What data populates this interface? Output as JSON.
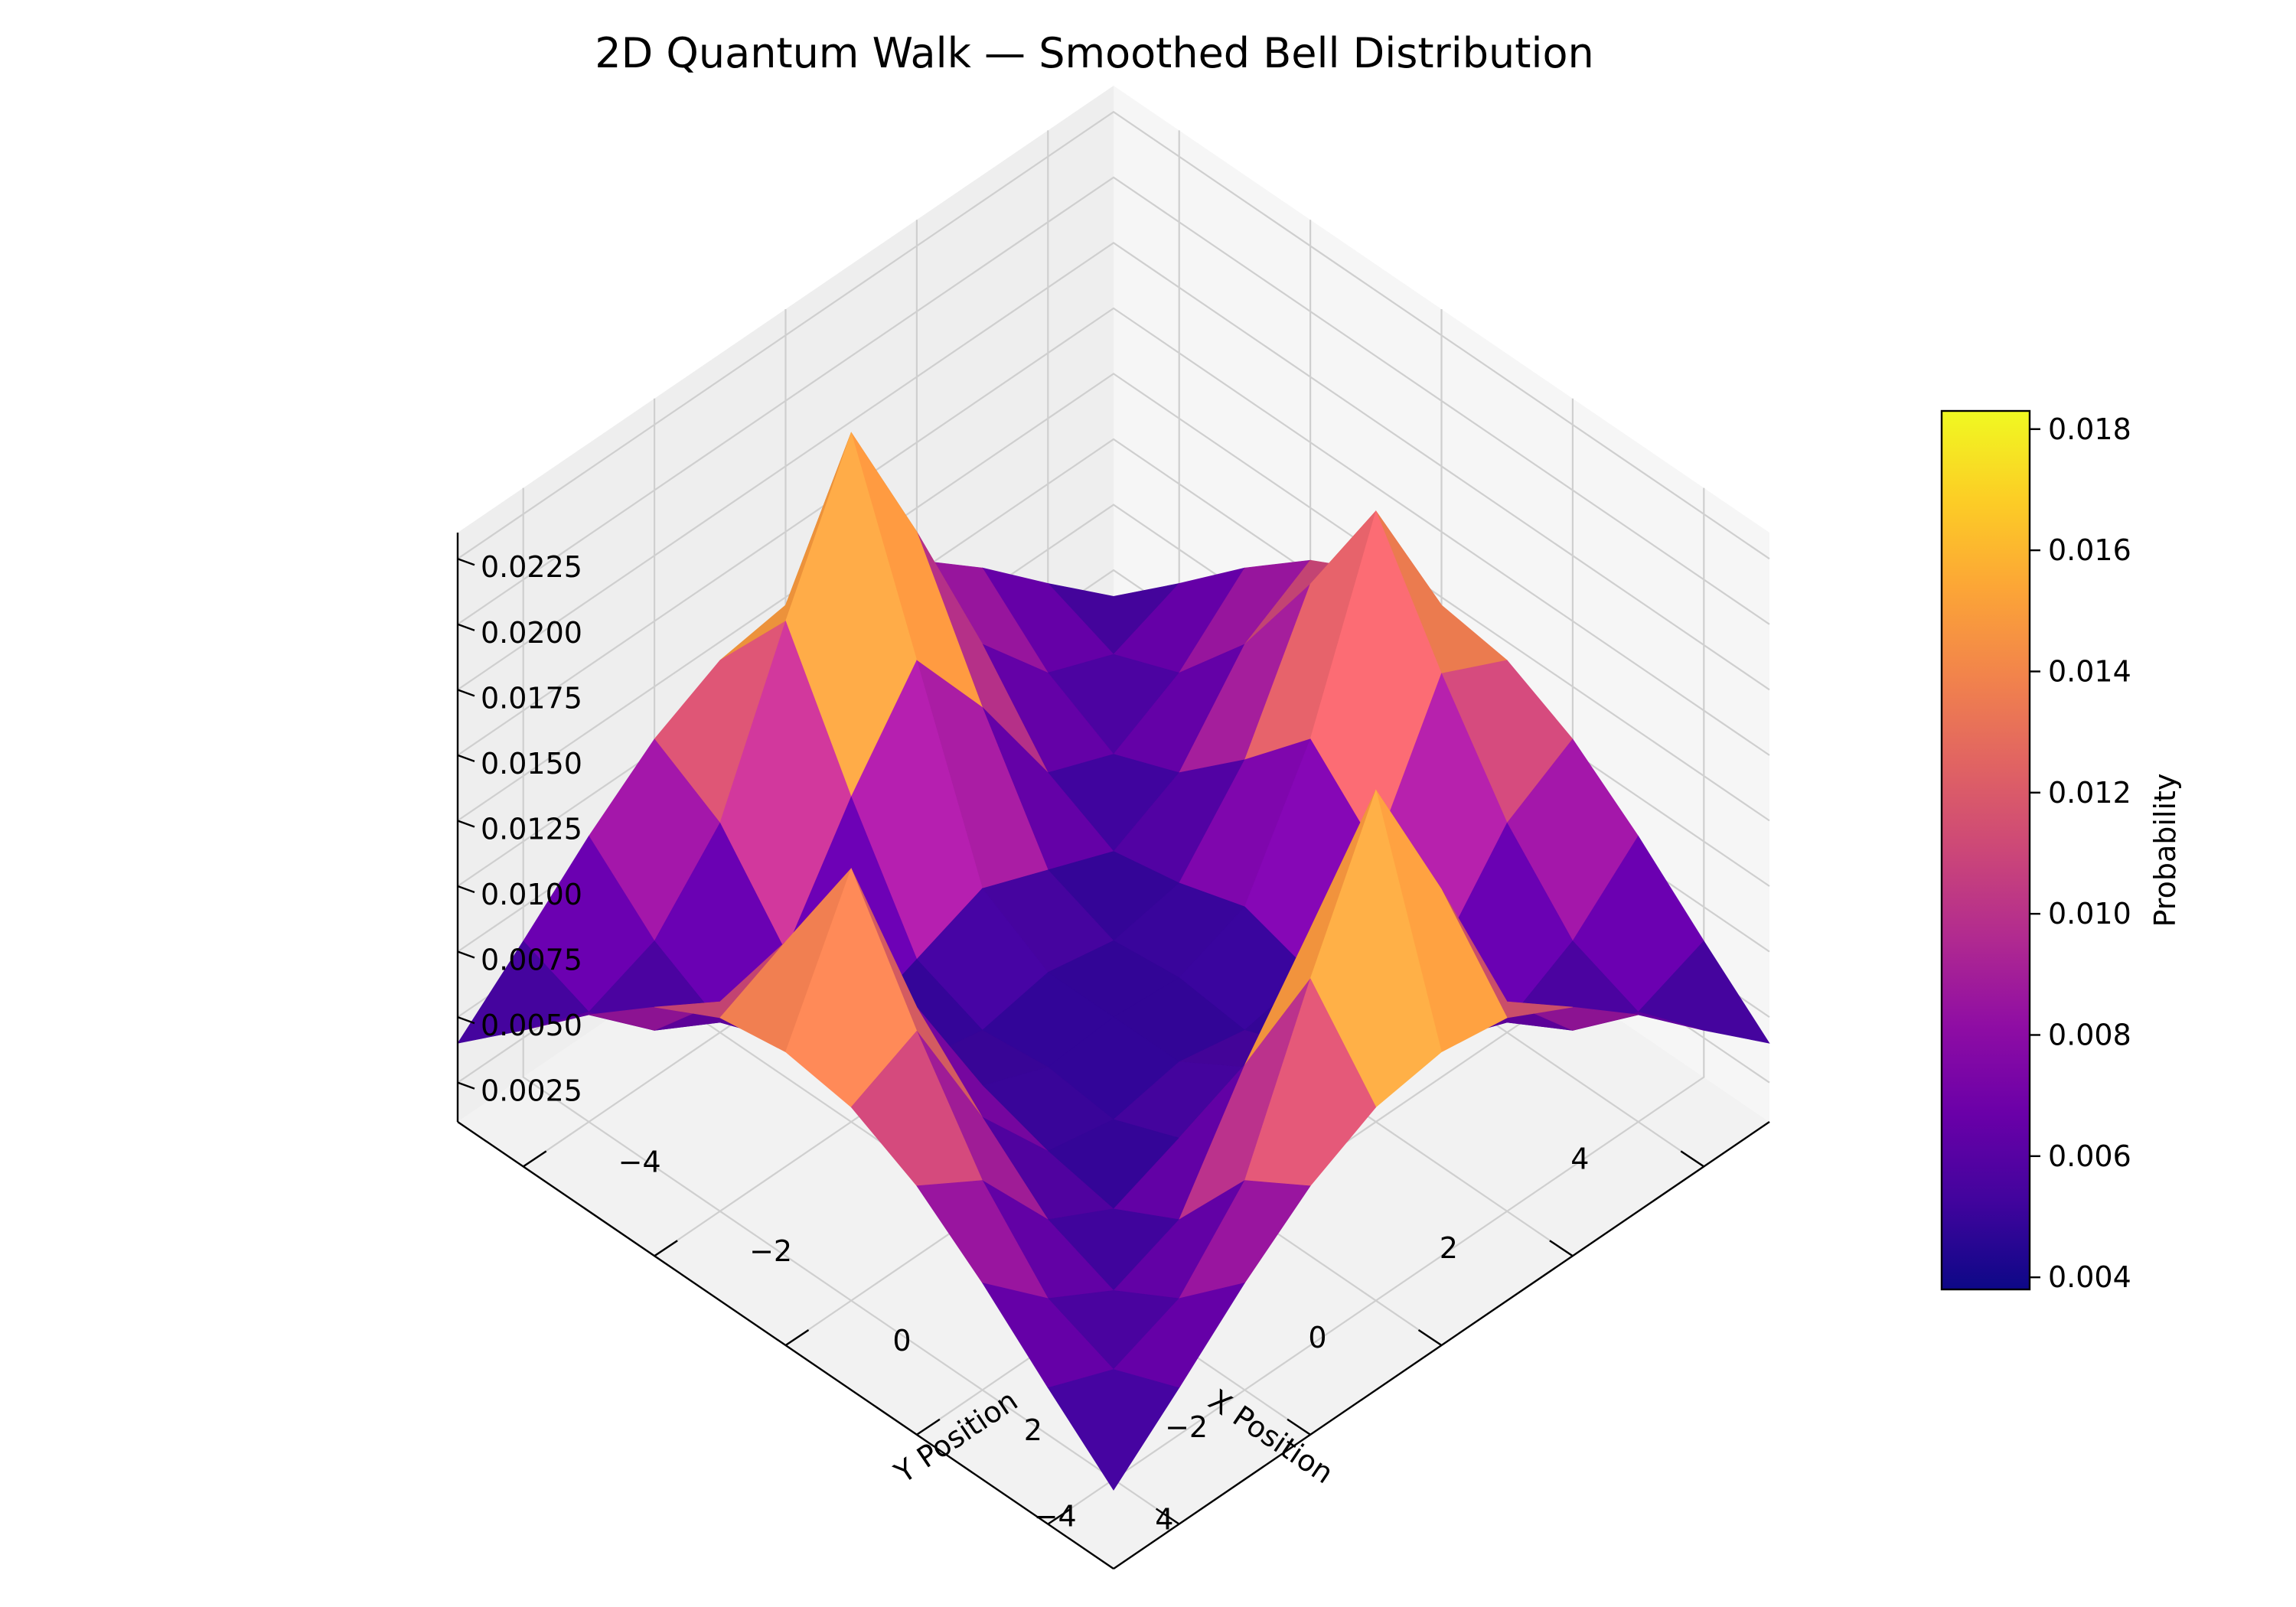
{
  "chart_data": {
    "type": "surface3d",
    "title": "2D Quantum Walk — Smoothed Bell Distribution",
    "xlabel": "X Position",
    "ylabel": "Y Position",
    "zlabel": "",
    "x": [
      -5,
      -4,
      -3,
      -2,
      -1,
      0,
      1,
      2,
      3,
      4,
      5
    ],
    "y": [
      -5,
      -4,
      -3,
      -2,
      -1,
      0,
      1,
      2,
      3,
      4,
      5
    ],
    "x_ticks": [
      4,
      2,
      0,
      -2,
      -4
    ],
    "y_ticks": [
      -4,
      -2,
      0,
      2,
      4
    ],
    "x_tick_labels": [
      "4",
      "2",
      "0",
      "−2",
      "−4"
    ],
    "y_tick_labels": [
      "−4",
      "−2",
      "0",
      "2",
      "4"
    ],
    "xlim": [
      -5,
      5
    ],
    "ylim": [
      -5,
      5
    ],
    "z_ticks": [
      0.0025,
      0.005,
      0.0075,
      0.01,
      0.0125,
      0.015,
      0.0175,
      0.02,
      0.0225
    ],
    "z_tick_labels": [
      "0.0025",
      "0.0050",
      "0.0075",
      "0.0100",
      "0.0125",
      "0.0150",
      "0.0175",
      "0.0200",
      "0.0225"
    ],
    "zlim": [
      0.001,
      0.0235
    ],
    "colorbar": {
      "label": "Probability",
      "min": 0.0038,
      "max": 0.0183,
      "ticks": [
        0.004,
        0.006,
        0.008,
        0.01,
        0.012,
        0.014,
        0.016,
        0.018
      ],
      "tick_labels": [
        "0.004",
        "0.006",
        "0.008",
        "0.010",
        "0.012",
        "0.014",
        "0.016",
        "0.018"
      ]
    },
    "colormap": "plasma",
    "grid": true,
    "z_values": [
      [
        0.004,
        0.0062,
        0.0085,
        0.0105,
        0.0118,
        0.0122,
        0.0118,
        0.0105,
        0.0085,
        0.0062,
        0.004
      ],
      [
        0.0062,
        0.0052,
        0.0062,
        0.009,
        0.013,
        0.0175,
        0.013,
        0.009,
        0.0062,
        0.0052,
        0.0062
      ],
      [
        0.0085,
        0.0062,
        0.0048,
        0.0058,
        0.008,
        0.0105,
        0.008,
        0.0058,
        0.0048,
        0.0062,
        0.0085
      ],
      [
        0.0105,
        0.009,
        0.0058,
        0.0045,
        0.005,
        0.0058,
        0.005,
        0.0045,
        0.0058,
        0.009,
        0.0105
      ],
      [
        0.0118,
        0.015,
        0.01,
        0.0055,
        0.0045,
        0.0048,
        0.0045,
        0.0055,
        0.01,
        0.015,
        0.0118
      ],
      [
        0.0122,
        0.0205,
        0.0135,
        0.0065,
        0.005,
        0.005,
        0.005,
        0.0065,
        0.0135,
        0.0205,
        0.0122
      ],
      [
        0.0118,
        0.015,
        0.01,
        0.0055,
        0.0045,
        0.0048,
        0.0045,
        0.0055,
        0.01,
        0.015,
        0.0118
      ],
      [
        0.0105,
        0.009,
        0.0058,
        0.0045,
        0.005,
        0.0058,
        0.005,
        0.0045,
        0.0058,
        0.009,
        0.0105
      ],
      [
        0.0085,
        0.0062,
        0.0048,
        0.0058,
        0.008,
        0.0105,
        0.008,
        0.0058,
        0.0048,
        0.0062,
        0.0085
      ],
      [
        0.0062,
        0.0052,
        0.0062,
        0.009,
        0.013,
        0.0175,
        0.013,
        0.009,
        0.0062,
        0.0052,
        0.0062
      ],
      [
        0.004,
        0.0062,
        0.0085,
        0.0105,
        0.0118,
        0.0122,
        0.0118,
        0.0105,
        0.0085,
        0.0062,
        0.004
      ]
    ]
  }
}
